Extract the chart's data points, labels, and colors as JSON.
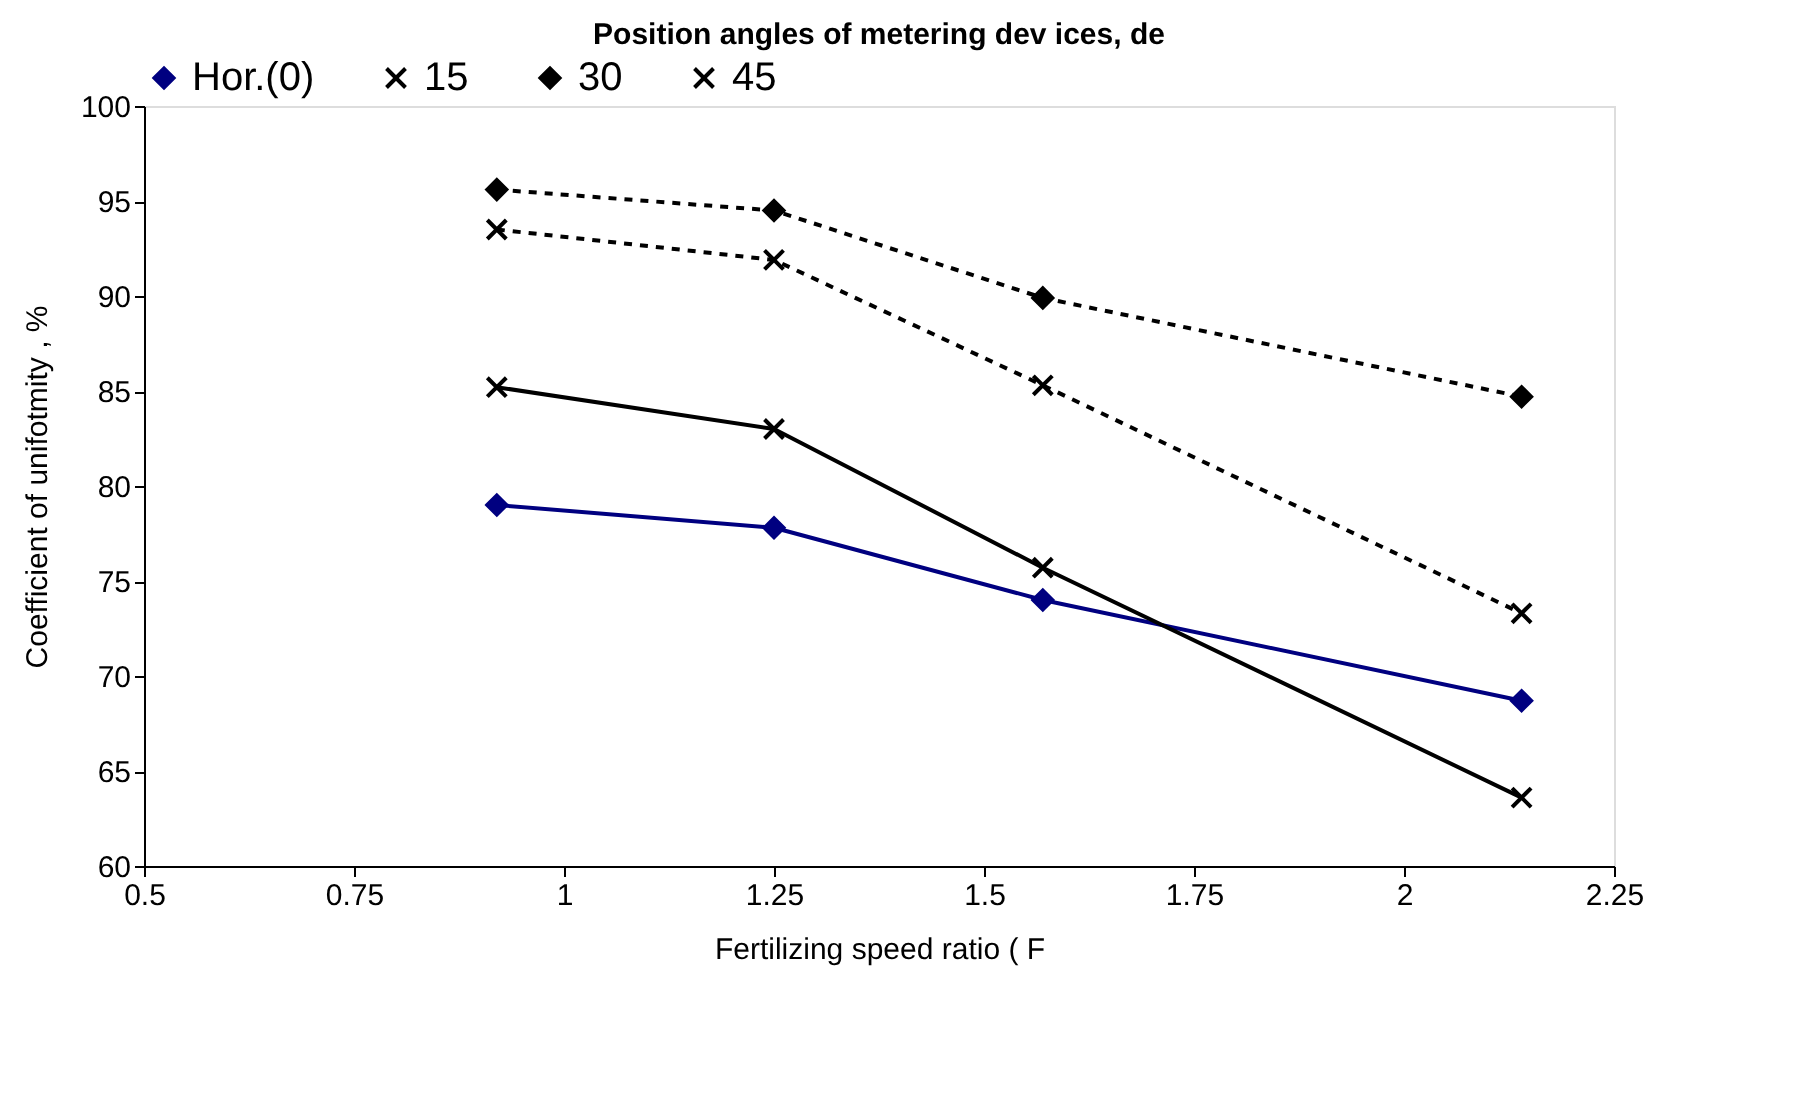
{
  "chart_data": {
    "type": "line",
    "title": "Position angles of metering dev ices, de",
    "xlabel": "Fertilizing speed ratio ( F",
    "ylabel": "Coefficient of unifotmity , %",
    "x": [
      0.92,
      1.25,
      1.57,
      2.14
    ],
    "series": [
      {
        "name": "Hor.(0)",
        "color": "#000080",
        "marker": "diamond",
        "line_style": "solid",
        "values": [
          79,
          77.8,
          74,
          68.7
        ]
      },
      {
        "name": "15",
        "color": "#000000",
        "marker": "cross",
        "line_style": "solid",
        "values": [
          85.2,
          83,
          75.7,
          63.6
        ]
      },
      {
        "name": "30",
        "color": "#000000",
        "marker": "diamond",
        "line_style": "dashed",
        "values": [
          95.6,
          94.5,
          89.9,
          84.7
        ]
      },
      {
        "name": "45",
        "color": "#000000",
        "marker": "cross",
        "line_style": "dashed",
        "values": [
          93.5,
          91.9,
          85.3,
          73.3
        ]
      }
    ],
    "xlim": [
      0.5,
      2.25
    ],
    "xticks": [
      0.5,
      0.75,
      1,
      1.25,
      1.5,
      1.75,
      2,
      2.25
    ],
    "ylim": [
      60,
      100
    ],
    "yticks": [
      60,
      65,
      70,
      75,
      80,
      85,
      90,
      95,
      100
    ],
    "grid": false,
    "legend": "top"
  }
}
